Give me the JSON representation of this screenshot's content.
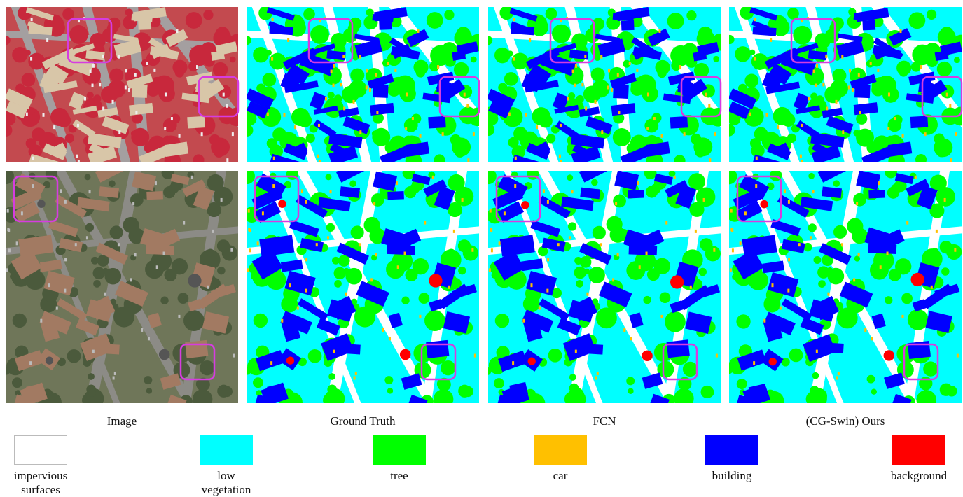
{
  "columns": [
    "Image",
    "Ground Truth",
    "FCN",
    "(CG-Swin) Ours"
  ],
  "legend": [
    {
      "label": "impervious surfaces",
      "color": "#ffffff"
    },
    {
      "label": "low vegetation",
      "color": "#00ffff"
    },
    {
      "label": "tree",
      "color": "#00ff00"
    },
    {
      "label": "car",
      "color": "#ffc000"
    },
    {
      "label": "building",
      "color": "#0000ff"
    },
    {
      "label": "background",
      "color": "#ff0000"
    }
  ]
}
